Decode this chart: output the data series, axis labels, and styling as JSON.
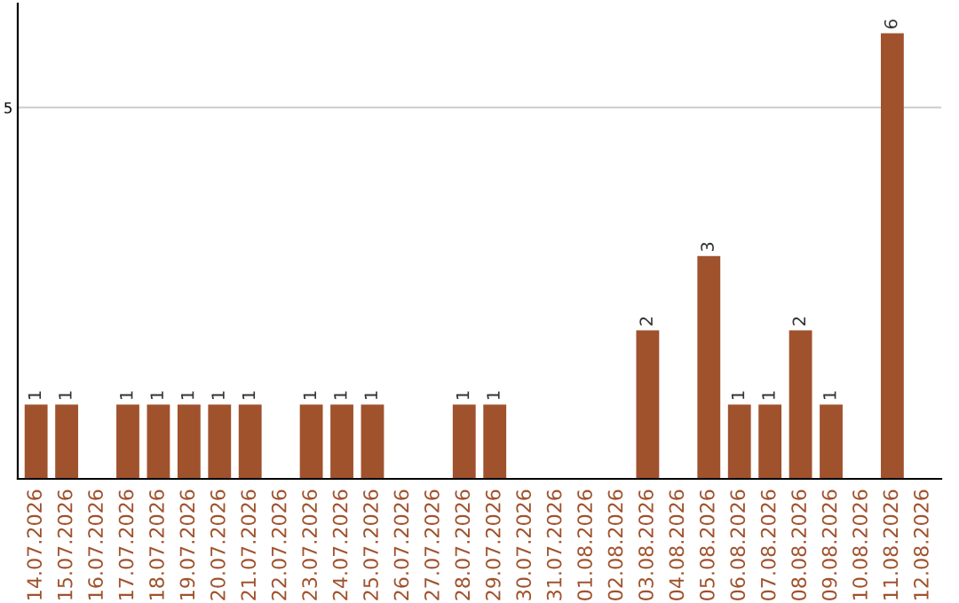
{
  "chart_data": {
    "type": "bar",
    "categories": [
      "14.07.2026",
      "15.07.2026",
      "16.07.2026",
      "17.07.2026",
      "18.07.2026",
      "19.07.2026",
      "20.07.2026",
      "21.07.2026",
      "22.07.2026",
      "23.07.2026",
      "24.07.2026",
      "25.07.2026",
      "26.07.2026",
      "27.07.2026",
      "28.07.2026",
      "29.07.2026",
      "30.07.2026",
      "31.07.2026",
      "01.08.2026",
      "02.08.2026",
      "03.08.2026",
      "04.08.2026",
      "05.08.2026",
      "06.08.2026",
      "07.08.2026",
      "08.08.2026",
      "09.08.2026",
      "10.08.2026",
      "11.08.2026",
      "12.08.2026"
    ],
    "values": [
      1,
      1,
      0,
      1,
      1,
      1,
      1,
      1,
      0,
      1,
      1,
      1,
      0,
      0,
      1,
      1,
      0,
      0,
      0,
      0,
      2,
      0,
      3,
      1,
      1,
      2,
      1,
      0,
      6,
      0
    ],
    "value_labels": [
      "1",
      "1",
      null,
      "1",
      "1",
      "1",
      "1",
      "1",
      null,
      "1",
      "1",
      "1",
      null,
      null,
      "1",
      "1",
      null,
      null,
      null,
      null,
      "2",
      null,
      "3",
      "1",
      "1",
      "2",
      "1",
      null,
      "6",
      null
    ],
    "color": "#a0522d",
    "ylim": [
      0,
      6.4
    ],
    "yticks": [
      5
    ],
    "grid": "y"
  }
}
